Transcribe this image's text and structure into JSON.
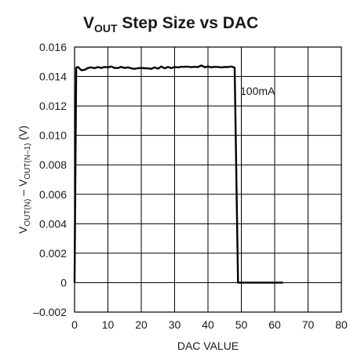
{
  "chart_data": {
    "type": "line",
    "title": {
      "main": "V",
      "sub": "OUT",
      "rest": " Step Size vs DAC"
    },
    "xlabel": "DAC VALUE",
    "ylabel": {
      "p1": "V",
      "s1": "OUT(N)",
      "p2": " – V",
      "s2": "OUT(N–1)",
      "p3": " (V)"
    },
    "xlim": [
      0,
      80
    ],
    "ylim": [
      -0.002,
      0.016
    ],
    "x_ticks": [
      "0",
      "10",
      "20",
      "30",
      "40",
      "50",
      "60",
      "70",
      "80"
    ],
    "y_ticks": [
      "0.016",
      "0.014",
      "0.012",
      "0.010",
      "0.008",
      "0.006",
      "0.004",
      "0.002",
      "0",
      "–0.002"
    ],
    "grid": true,
    "annotation": "100mA",
    "series": [
      {
        "x": [
          0,
          0.5,
          1,
          2,
          3,
          4,
          5,
          6,
          7,
          8,
          9,
          10,
          11,
          12,
          13,
          14,
          15,
          16,
          17,
          18,
          19,
          20,
          21,
          22,
          23,
          24,
          25,
          26,
          27,
          28,
          29,
          30,
          31,
          32,
          33,
          34,
          35,
          36,
          37,
          38,
          39,
          40,
          41,
          42,
          43,
          44,
          45,
          46,
          47,
          48,
          49,
          50,
          52,
          55,
          58,
          60,
          62.5
        ],
        "values": [
          0,
          0.0146,
          0.01465,
          0.01443,
          0.01445,
          0.01458,
          0.01462,
          0.01456,
          0.01464,
          0.01458,
          0.01465,
          0.01462,
          0.01468,
          0.01458,
          0.01458,
          0.01466,
          0.01458,
          0.01462,
          0.01455,
          0.01452,
          0.01456,
          0.01458,
          0.01456,
          0.01455,
          0.01452,
          0.01462,
          0.01453,
          0.01468,
          0.01455,
          0.01465,
          0.01457,
          0.01465,
          0.01462,
          0.01466,
          0.01466,
          0.01467,
          0.01463,
          0.01466,
          0.01464,
          0.01475,
          0.01463,
          0.01468,
          0.01462,
          0.01466,
          0.01465,
          0.01462,
          0.01465,
          0.01464,
          0.01468,
          0.0146,
          0.0,
          0.0,
          0.0,
          0.0,
          0.0,
          0.0,
          0.0
        ]
      }
    ]
  }
}
